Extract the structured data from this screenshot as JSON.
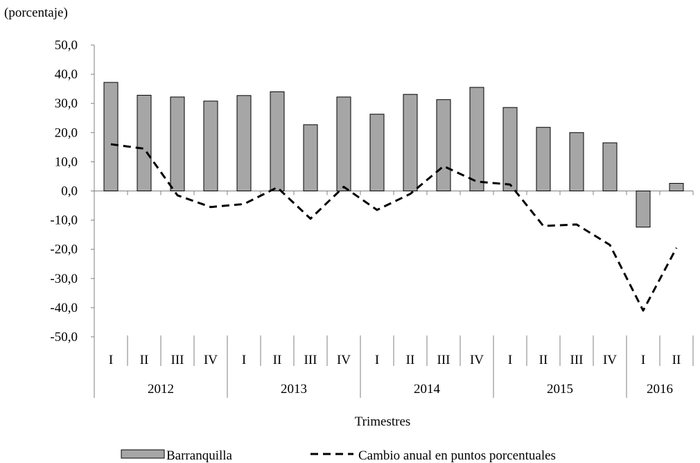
{
  "unit_label": "(porcentaje)",
  "chart_data": {
    "type": "bar",
    "title": "",
    "xlabel": "Trimestres",
    "ylabel": "",
    "ylim": [
      -50,
      50
    ],
    "yticks": [
      "50,0",
      "40,0",
      "30,0",
      "20,0",
      "10,0",
      "0,0",
      "-10,0",
      "-20,0",
      "-30,0",
      "-40,0",
      "-50,0"
    ],
    "ytick_values": [
      50,
      40,
      30,
      20,
      10,
      0,
      -10,
      -20,
      -30,
      -40,
      -50
    ],
    "categories": [
      "I",
      "II",
      "III",
      "IV",
      "I",
      "II",
      "III",
      "IV",
      "I",
      "II",
      "III",
      "IV",
      "I",
      "II",
      "III",
      "IV",
      "I",
      "II"
    ],
    "years": [
      {
        "label": "2012",
        "count": 4
      },
      {
        "label": "2013",
        "count": 4
      },
      {
        "label": "2014",
        "count": 4
      },
      {
        "label": "2015",
        "count": 4
      },
      {
        "label": "2016",
        "count": 2
      }
    ],
    "series": [
      {
        "name": "Barranquilla",
        "type": "bar",
        "color": "#a6a6a6",
        "values": [
          37.2,
          32.8,
          32.2,
          30.8,
          32.7,
          34.0,
          22.7,
          32.2,
          26.3,
          33.1,
          31.3,
          35.5,
          28.6,
          21.8,
          20.0,
          16.5,
          -12.4,
          2.6
        ]
      },
      {
        "name": "Cambio anual en puntos porcentuales",
        "type": "line",
        "color": "#000000",
        "dash": "dashed",
        "values": [
          16.0,
          14.5,
          -1.5,
          -5.5,
          -4.5,
          1.2,
          -9.5,
          1.4,
          -6.5,
          -1.0,
          8.5,
          3.2,
          2.2,
          -12.0,
          -11.5,
          -18.5,
          -41.0,
          -19.5
        ]
      }
    ],
    "legend_position": "bottom",
    "grid": false
  }
}
